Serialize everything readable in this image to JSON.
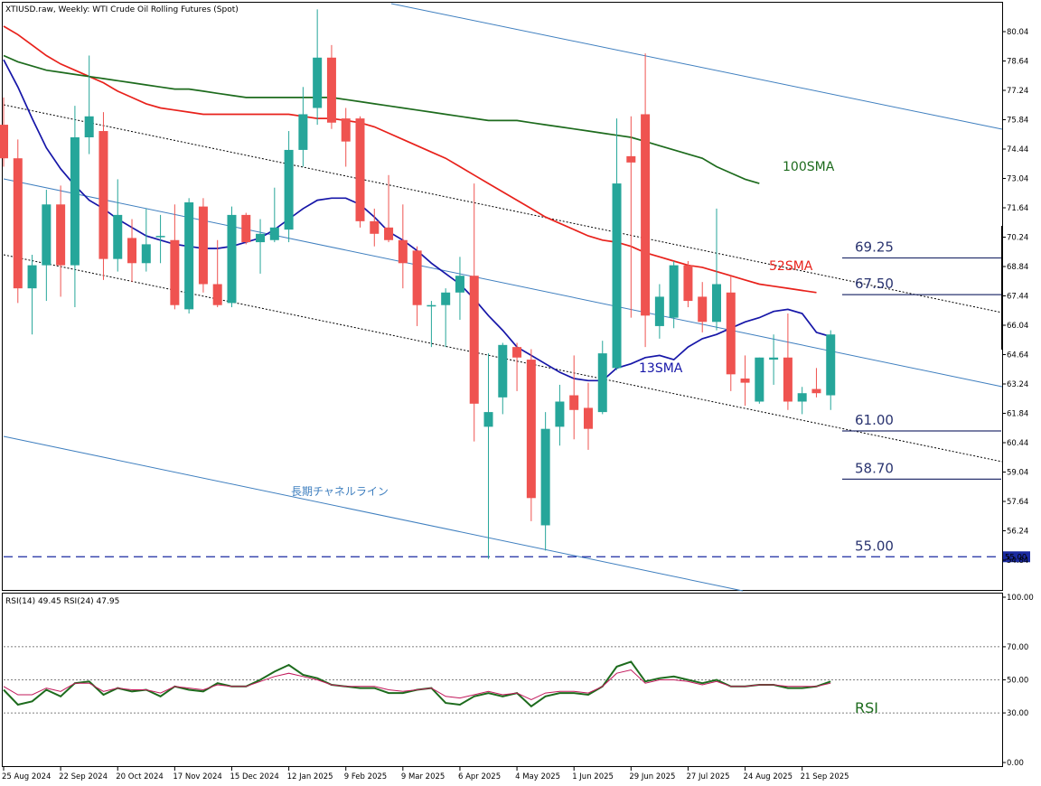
{
  "header": {
    "title": "XTIUSD.raw, Weekly:  WTI Crude Oil Rolling Futures (Spot)",
    "rsi_label": "RSI(14) 49.45 RSI(24) 47.95"
  },
  "colors": {
    "bull": "#26a69a",
    "bear": "#ef5350",
    "sma13": "#1616a8",
    "sma52": "#e8211b",
    "sma100": "#1d6b1d",
    "channel": "#3f7fbf",
    "rsi14": "#1d6b1d",
    "rsi24": "#c2185b"
  },
  "chart_data": [
    {
      "type": "candlestick",
      "title": "XTIUSD.raw, Weekly:  WTI Crude Oil Rolling Futures (Spot)",
      "ylim": [
        53.6,
        81.5
      ],
      "y_ticks": [
        "80.04",
        "78.64",
        "77.24",
        "75.84",
        "74.44",
        "73.04",
        "71.64",
        "70.24",
        "68.84",
        "67.44",
        "66.04",
        "64.64",
        "63.24",
        "61.84",
        "60.44",
        "59.04",
        "57.64",
        "56.24",
        "54.84"
      ],
      "x_labels": [
        "25 Aug 2024",
        "22 Sep 2024",
        "20 Oct 2024",
        "17 Nov 2024",
        "15 Dec 2024",
        "12 Jan 2025",
        "9 Feb 2025",
        "9 Mar 2025",
        "6 Apr 2025",
        "4 May 2025",
        "1 Jun 2025",
        "29 Jun 2025",
        "27 Jul 2025",
        "24 Aug 2025",
        "21 Sep 2025"
      ],
      "candles": [
        {
          "o": 75.6,
          "h": 76.9,
          "l": 73.6,
          "c": 74.0
        },
        {
          "o": 74.0,
          "h": 74.9,
          "l": 67.1,
          "c": 67.8
        },
        {
          "o": 67.8,
          "h": 69.4,
          "l": 65.6,
          "c": 68.9
        },
        {
          "o": 68.9,
          "h": 72.5,
          "l": 67.2,
          "c": 71.8
        },
        {
          "o": 71.8,
          "h": 72.7,
          "l": 67.4,
          "c": 68.9
        },
        {
          "o": 68.9,
          "h": 76.5,
          "l": 66.9,
          "c": 75.0
        },
        {
          "o": 75.0,
          "h": 78.9,
          "l": 74.2,
          "c": 76.0
        },
        {
          "o": 75.3,
          "h": 76.2,
          "l": 68.2,
          "c": 69.2
        },
        {
          "o": 69.2,
          "h": 73.0,
          "l": 68.6,
          "c": 71.3
        },
        {
          "o": 70.2,
          "h": 71.1,
          "l": 68.1,
          "c": 69.0
        },
        {
          "o": 69.0,
          "h": 71.6,
          "l": 68.6,
          "c": 69.9
        },
        {
          "o": 70.3,
          "h": 71.3,
          "l": 69.0,
          "c": 70.3
        },
        {
          "o": 70.1,
          "h": 71.8,
          "l": 66.8,
          "c": 67.0
        },
        {
          "o": 66.8,
          "h": 72.1,
          "l": 66.6,
          "c": 71.9
        },
        {
          "o": 71.7,
          "h": 72.1,
          "l": 67.6,
          "c": 68.0
        },
        {
          "o": 68.0,
          "h": 70.1,
          "l": 66.9,
          "c": 67.0
        },
        {
          "o": 67.1,
          "h": 71.7,
          "l": 66.9,
          "c": 71.3
        },
        {
          "o": 71.3,
          "h": 71.4,
          "l": 69.9,
          "c": 70.0
        },
        {
          "o": 70.0,
          "h": 71.1,
          "l": 68.5,
          "c": 70.4
        },
        {
          "o": 70.1,
          "h": 72.6,
          "l": 70.0,
          "c": 70.7
        },
        {
          "o": 70.6,
          "h": 75.3,
          "l": 70.0,
          "c": 74.4
        },
        {
          "o": 74.4,
          "h": 77.4,
          "l": 73.6,
          "c": 76.1
        },
        {
          "o": 76.4,
          "h": 81.1,
          "l": 75.6,
          "c": 78.8
        },
        {
          "o": 78.8,
          "h": 79.4,
          "l": 75.4,
          "c": 75.7
        },
        {
          "o": 75.9,
          "h": 76.4,
          "l": 73.6,
          "c": 74.8
        },
        {
          "o": 75.9,
          "h": 76.0,
          "l": 70.7,
          "c": 71.0
        },
        {
          "o": 71.0,
          "h": 71.6,
          "l": 69.8,
          "c": 70.4
        },
        {
          "o": 70.7,
          "h": 73.2,
          "l": 70.0,
          "c": 70.1
        },
        {
          "o": 70.1,
          "h": 71.8,
          "l": 67.8,
          "c": 69.0
        },
        {
          "o": 69.6,
          "h": 69.8,
          "l": 66.0,
          "c": 67.0
        },
        {
          "o": 67.0,
          "h": 67.2,
          "l": 65.0,
          "c": 67.0
        },
        {
          "o": 67.0,
          "h": 67.8,
          "l": 65.0,
          "c": 67.6
        },
        {
          "o": 67.6,
          "h": 69.3,
          "l": 66.3,
          "c": 68.4
        },
        {
          "o": 68.4,
          "h": 72.8,
          "l": 60.5,
          "c": 62.3
        },
        {
          "o": 61.2,
          "h": 64.7,
          "l": 54.9,
          "c": 61.9
        },
        {
          "o": 62.6,
          "h": 65.2,
          "l": 61.8,
          "c": 65.1
        },
        {
          "o": 65.0,
          "h": 65.2,
          "l": 62.9,
          "c": 64.5
        },
        {
          "o": 64.4,
          "h": 64.9,
          "l": 56.7,
          "c": 57.8
        },
        {
          "o": 56.5,
          "h": 61.9,
          "l": 55.3,
          "c": 61.1
        },
        {
          "o": 61.2,
          "h": 63.2,
          "l": 60.3,
          "c": 62.4
        },
        {
          "o": 62.7,
          "h": 64.6,
          "l": 60.6,
          "c": 62.0
        },
        {
          "o": 62.1,
          "h": 63.3,
          "l": 60.1,
          "c": 61.1
        },
        {
          "o": 61.9,
          "h": 65.3,
          "l": 61.8,
          "c": 64.7
        },
        {
          "o": 64.0,
          "h": 75.9,
          "l": 63.9,
          "c": 72.8
        },
        {
          "o": 74.1,
          "h": 76.0,
          "l": 66.4,
          "c": 73.8
        },
        {
          "o": 76.1,
          "h": 79.0,
          "l": 65.0,
          "c": 66.5
        },
        {
          "o": 66.0,
          "h": 68.0,
          "l": 65.4,
          "c": 67.4
        },
        {
          "o": 66.4,
          "h": 69.1,
          "l": 65.9,
          "c": 68.9
        },
        {
          "o": 68.9,
          "h": 69.1,
          "l": 66.9,
          "c": 67.2
        },
        {
          "o": 67.4,
          "h": 68.1,
          "l": 65.7,
          "c": 66.2
        },
        {
          "o": 66.2,
          "h": 71.6,
          "l": 65.8,
          "c": 68.0
        },
        {
          "o": 67.6,
          "h": 68.4,
          "l": 62.9,
          "c": 63.7
        },
        {
          "o": 63.5,
          "h": 64.6,
          "l": 62.2,
          "c": 63.3
        },
        {
          "o": 62.4,
          "h": 64.5,
          "l": 62.3,
          "c": 64.5
        },
        {
          "o": 64.4,
          "h": 65.6,
          "l": 63.2,
          "c": 64.5
        },
        {
          "o": 64.5,
          "h": 66.6,
          "l": 62.0,
          "c": 62.4
        },
        {
          "o": 62.4,
          "h": 63.1,
          "l": 61.8,
          "c": 62.8
        },
        {
          "o": 63.0,
          "h": 64.0,
          "l": 62.6,
          "c": 62.8
        },
        {
          "o": 62.7,
          "h": 65.8,
          "l": 62.0,
          "c": 65.6
        }
      ],
      "series": [
        {
          "name": "13SMA",
          "values": [
            78.7,
            77.4,
            75.9,
            74.5,
            73.5,
            72.7,
            72.0,
            71.6,
            71.1,
            70.7,
            70.3,
            70.1,
            69.9,
            69.8,
            69.7,
            69.7,
            69.8,
            70.0,
            70.2,
            70.6,
            71.1,
            71.6,
            72.0,
            72.1,
            72.1,
            71.8,
            71.2,
            70.5,
            70.1,
            69.6,
            69.0,
            68.5,
            68.0,
            67.3,
            66.5,
            65.8,
            65.0,
            64.6,
            64.2,
            63.8,
            63.5,
            63.4,
            63.4,
            64.0,
            64.2,
            64.5,
            64.6,
            64.4,
            65.0,
            65.4,
            65.6,
            65.9,
            66.2,
            66.4,
            66.7,
            66.8,
            66.6,
            65.7,
            65.5
          ]
        },
        {
          "name": "52SMA",
          "values": [
            80.3,
            79.9,
            79.4,
            78.9,
            78.5,
            78.2,
            77.9,
            77.6,
            77.2,
            76.9,
            76.6,
            76.4,
            76.3,
            76.2,
            76.1,
            76.1,
            76.1,
            76.1,
            76.1,
            76.1,
            76.1,
            76.0,
            75.9,
            75.9,
            75.8,
            75.7,
            75.5,
            75.2,
            74.9,
            74.6,
            74.3,
            74.0,
            73.6,
            73.2,
            72.8,
            72.4,
            72.0,
            71.6,
            71.2,
            70.9,
            70.6,
            70.3,
            70.1,
            70.0,
            69.8,
            69.5,
            69.3,
            69.1,
            68.9,
            68.8,
            68.6,
            68.4,
            68.2,
            68.0,
            67.9,
            67.8,
            67.7,
            67.6
          ]
        },
        {
          "name": "100SMA",
          "values": [
            78.9,
            78.6,
            78.4,
            78.2,
            78.1,
            78.0,
            77.9,
            77.8,
            77.7,
            77.6,
            77.5,
            77.4,
            77.3,
            77.3,
            77.2,
            77.1,
            77.0,
            76.9,
            76.9,
            76.9,
            76.9,
            76.9,
            76.9,
            76.9,
            76.8,
            76.7,
            76.6,
            76.5,
            76.4,
            76.3,
            76.2,
            76.1,
            76.0,
            75.9,
            75.8,
            75.8,
            75.8,
            75.7,
            75.6,
            75.5,
            75.4,
            75.3,
            75.2,
            75.1,
            75.0,
            74.8,
            74.6,
            74.4,
            74.2,
            74.0,
            73.6,
            73.3,
            73.0,
            72.8
          ]
        }
      ],
      "annotations": {
        "sma13_label": "13SMA",
        "sma52_label": "52SMA",
        "sma100_label": "100SMA",
        "channel_label": "長期チャネルライン",
        "levels": [
          {
            "label": "69.25",
            "value": 69.25
          },
          {
            "label": "67.50",
            "value": 67.5
          },
          {
            "label": "61.00",
            "value": 61.0
          },
          {
            "label": "58.70",
            "value": 58.7
          },
          {
            "label": "55.00",
            "value": 55.0
          }
        ],
        "price_marker": "55.00"
      }
    },
    {
      "type": "line",
      "title": "RSI(14) 49.45 RSI(24) 47.95",
      "ylim": [
        0,
        100
      ],
      "y_ticks": [
        "100.00",
        "70.00",
        "50.00",
        "30.00",
        "0.00"
      ],
      "levels": [
        70,
        50,
        30
      ],
      "annotation": "RSI",
      "series": [
        {
          "name": "RSI(14)",
          "values": [
            44,
            35,
            37,
            44,
            40,
            48,
            49,
            41,
            45,
            43,
            44,
            40,
            46,
            44,
            43,
            48,
            46,
            46,
            50,
            55,
            59,
            53,
            51,
            47,
            46,
            45,
            45,
            42,
            42,
            44,
            45,
            36,
            35,
            40,
            42,
            40,
            42,
            34,
            40,
            42,
            42,
            41,
            46,
            58,
            61,
            49,
            51,
            52,
            50,
            48,
            50,
            46,
            46,
            47,
            47,
            45,
            45,
            46,
            49
          ]
        },
        {
          "name": "RSI(24)",
          "values": [
            46,
            41,
            41,
            45,
            43,
            48,
            48,
            43,
            45,
            44,
            44,
            42,
            46,
            45,
            44,
            47,
            46,
            46,
            49,
            52,
            54,
            52,
            50,
            47,
            46,
            46,
            46,
            44,
            43,
            44,
            45,
            40,
            39,
            41,
            43,
            41,
            42,
            38,
            42,
            43,
            43,
            42,
            46,
            54,
            56,
            48,
            50,
            50,
            49,
            47,
            49,
            46,
            46,
            47,
            47,
            46,
            46,
            46,
            48
          ]
        }
      ]
    }
  ]
}
